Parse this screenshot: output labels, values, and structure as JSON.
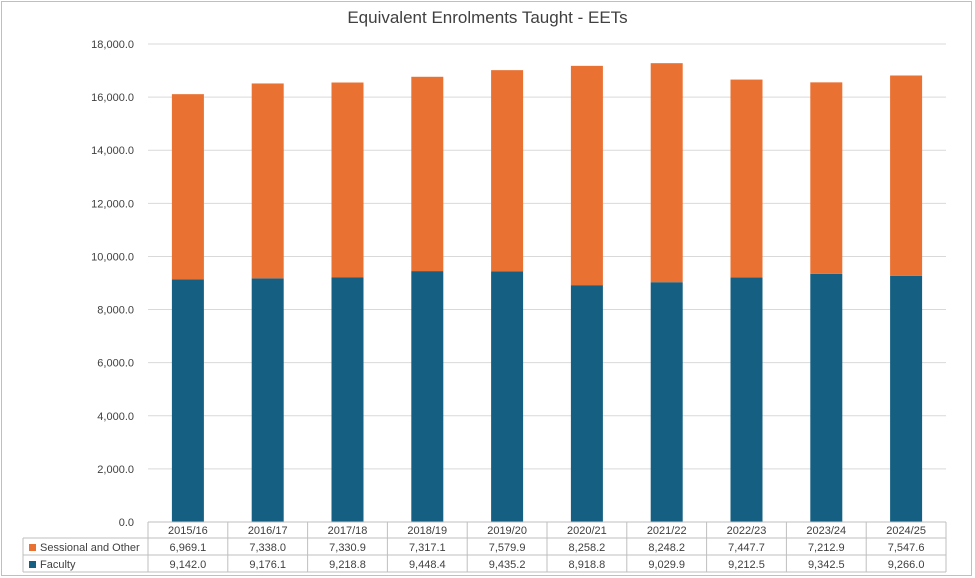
{
  "chart_data": {
    "type": "bar",
    "stacked": true,
    "title": "Equivalent Enrolments Taught - EETs",
    "categories": [
      "2015/16",
      "2016/17",
      "2017/18",
      "2018/19",
      "2019/20",
      "2020/21",
      "2021/22",
      "2022/23",
      "2023/24",
      "2024/25"
    ],
    "series": [
      {
        "name": "Faculty",
        "color": "#156082",
        "values": [
          9142.0,
          9176.1,
          9218.8,
          9448.4,
          9435.2,
          8918.8,
          9029.9,
          9212.5,
          9342.5,
          9266.0
        ],
        "labels": [
          "9,142.0",
          "9,176.1",
          "9,218.8",
          "9,448.4",
          "9,435.2",
          "8,918.8",
          "9,029.9",
          "9,212.5",
          "9,342.5",
          "9,266.0"
        ]
      },
      {
        "name": "Sessional and Other",
        "color": "#E97132",
        "values": [
          6969.1,
          7338.0,
          7330.9,
          7317.1,
          7579.9,
          8258.2,
          8248.2,
          7447.7,
          7212.9,
          7547.6
        ],
        "labels": [
          "6,969.1",
          "7,338.0",
          "7,330.9",
          "7,317.1",
          "7,579.9",
          "8,258.2",
          "8,248.2",
          "7,447.7",
          "7,212.9",
          "7,547.6"
        ]
      }
    ],
    "ylim": [
      0,
      18000
    ],
    "yticks": [
      0,
      2000,
      4000,
      6000,
      8000,
      10000,
      12000,
      14000,
      16000,
      18000
    ],
    "ytick_labels": [
      "0.0",
      "2,000.0",
      "4,000.0",
      "6,000.0",
      "8,000.0",
      "10,000.0",
      "12,000.0",
      "14,000.0",
      "16,000.0",
      "18,000.0"
    ],
    "grid": true,
    "legend": "data-table"
  }
}
